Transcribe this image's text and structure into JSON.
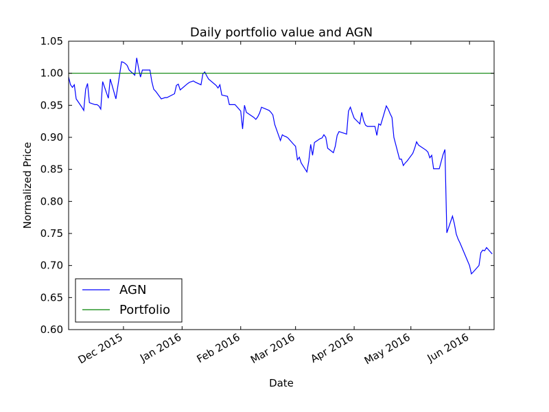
{
  "chart_data": {
    "type": "line",
    "title": "Daily portfolio value and AGN",
    "xlabel": "Date",
    "ylabel": "Normalized Price",
    "xlim": [
      "2015-11-02",
      "2016-06-14"
    ],
    "ylim": [
      0.6,
      1.05
    ],
    "grid": false,
    "legend_position": "lower-left",
    "x_ticks": [
      {
        "date": "2015-12-01",
        "label": "Dec 2015"
      },
      {
        "date": "2016-01-01",
        "label": "Jan 2016"
      },
      {
        "date": "2016-02-01",
        "label": "Feb 2016"
      },
      {
        "date": "2016-03-01",
        "label": "Mar 2016"
      },
      {
        "date": "2016-04-01",
        "label": "Apr 2016"
      },
      {
        "date": "2016-05-01",
        "label": "May 2016"
      },
      {
        "date": "2016-06-01",
        "label": "Jun 2016"
      }
    ],
    "y_ticks": [
      0.6,
      0.65,
      0.7,
      0.75,
      0.8,
      0.85,
      0.9,
      0.95,
      1.0,
      1.05
    ],
    "series": [
      {
        "name": "AGN",
        "color": "#0000ff",
        "points": [
          [
            "2015-11-02",
            0.994
          ],
          [
            "2015-11-03",
            0.982
          ],
          [
            "2015-11-04",
            0.978
          ],
          [
            "2015-11-05",
            0.982
          ],
          [
            "2015-11-06",
            0.96
          ],
          [
            "2015-11-09",
            0.947
          ],
          [
            "2015-11-10",
            0.942
          ],
          [
            "2015-11-11",
            0.975
          ],
          [
            "2015-11-12",
            0.984
          ],
          [
            "2015-11-13",
            0.954
          ],
          [
            "2015-11-16",
            0.951
          ],
          [
            "2015-11-17",
            0.951
          ],
          [
            "2015-11-18",
            0.949
          ],
          [
            "2015-11-19",
            0.944
          ],
          [
            "2015-11-20",
            0.987
          ],
          [
            "2015-11-23",
            0.961
          ],
          [
            "2015-11-24",
            0.991
          ],
          [
            "2015-11-25",
            0.981
          ],
          [
            "2015-11-27",
            0.96
          ],
          [
            "2015-11-30",
            1.018
          ],
          [
            "2015-12-01",
            1.017
          ],
          [
            "2015-12-02",
            1.015
          ],
          [
            "2015-12-03",
            1.012
          ],
          [
            "2015-12-04",
            1.005
          ],
          [
            "2015-12-07",
            0.997
          ],
          [
            "2015-12-08",
            1.024
          ],
          [
            "2015-12-09",
            1.008
          ],
          [
            "2015-12-10",
            0.994
          ],
          [
            "2015-12-11",
            1.005
          ],
          [
            "2015-12-14",
            1.005
          ],
          [
            "2015-12-15",
            1.005
          ],
          [
            "2015-12-16",
            0.987
          ],
          [
            "2015-12-17",
            0.975
          ],
          [
            "2015-12-18",
            0.972
          ],
          [
            "2015-12-21",
            0.96
          ],
          [
            "2015-12-22",
            0.961
          ],
          [
            "2015-12-23",
            0.962
          ],
          [
            "2015-12-24",
            0.962
          ],
          [
            "2015-12-28",
            0.968
          ],
          [
            "2015-12-29",
            0.981
          ],
          [
            "2015-12-30",
            0.983
          ],
          [
            "2015-12-31",
            0.974
          ],
          [
            "2016-01-04",
            0.984
          ],
          [
            "2016-01-05",
            0.986
          ],
          [
            "2016-01-06",
            0.987
          ],
          [
            "2016-01-07",
            0.988
          ],
          [
            "2016-01-08",
            0.986
          ],
          [
            "2016-01-11",
            0.982
          ],
          [
            "2016-01-12",
            0.999
          ],
          [
            "2016-01-13",
            1.002
          ],
          [
            "2016-01-14",
            0.996
          ],
          [
            "2016-01-15",
            0.991
          ],
          [
            "2016-01-19",
            0.981
          ],
          [
            "2016-01-20",
            0.977
          ],
          [
            "2016-01-21",
            0.982
          ],
          [
            "2016-01-22",
            0.966
          ],
          [
            "2016-01-25",
            0.964
          ],
          [
            "2016-01-26",
            0.951
          ],
          [
            "2016-01-27",
            0.951
          ],
          [
            "2016-01-28",
            0.951
          ],
          [
            "2016-01-29",
            0.951
          ],
          [
            "2016-02-01",
            0.941
          ],
          [
            "2016-02-02",
            0.913
          ],
          [
            "2016-02-03",
            0.95
          ],
          [
            "2016-02-04",
            0.939
          ],
          [
            "2016-02-05",
            0.937
          ],
          [
            "2016-02-08",
            0.931
          ],
          [
            "2016-02-09",
            0.928
          ],
          [
            "2016-02-10",
            0.932
          ],
          [
            "2016-02-11",
            0.938
          ],
          [
            "2016-02-12",
            0.947
          ],
          [
            "2016-02-16",
            0.942
          ],
          [
            "2016-02-17",
            0.939
          ],
          [
            "2016-02-18",
            0.935
          ],
          [
            "2016-02-19",
            0.92
          ],
          [
            "2016-02-22",
            0.895
          ],
          [
            "2016-02-23",
            0.904
          ],
          [
            "2016-02-24",
            0.902
          ],
          [
            "2016-02-25",
            0.901
          ],
          [
            "2016-02-26",
            0.899
          ],
          [
            "2016-02-29",
            0.889
          ],
          [
            "2016-03-01",
            0.886
          ],
          [
            "2016-03-02",
            0.865
          ],
          [
            "2016-03-03",
            0.869
          ],
          [
            "2016-03-04",
            0.86
          ],
          [
            "2016-03-07",
            0.846
          ],
          [
            "2016-03-08",
            0.863
          ],
          [
            "2016-03-09",
            0.889
          ],
          [
            "2016-03-10",
            0.872
          ],
          [
            "2016-03-11",
            0.892
          ],
          [
            "2016-03-14",
            0.898
          ],
          [
            "2016-03-15",
            0.899
          ],
          [
            "2016-03-16",
            0.904
          ],
          [
            "2016-03-17",
            0.9
          ],
          [
            "2016-03-18",
            0.883
          ],
          [
            "2016-03-21",
            0.876
          ],
          [
            "2016-03-22",
            0.886
          ],
          [
            "2016-03-23",
            0.903
          ],
          [
            "2016-03-24",
            0.909
          ],
          [
            "2016-03-28",
            0.905
          ],
          [
            "2016-03-29",
            0.941
          ],
          [
            "2016-03-30",
            0.947
          ],
          [
            "2016-03-31",
            0.938
          ],
          [
            "2016-04-01",
            0.93
          ],
          [
            "2016-04-04",
            0.921
          ],
          [
            "2016-04-05",
            0.939
          ],
          [
            "2016-04-06",
            0.926
          ],
          [
            "2016-04-07",
            0.919
          ],
          [
            "2016-04-08",
            0.917
          ],
          [
            "2016-04-11",
            0.917
          ],
          [
            "2016-04-12",
            0.917
          ],
          [
            "2016-04-13",
            0.903
          ],
          [
            "2016-04-14",
            0.921
          ],
          [
            "2016-04-15",
            0.919
          ],
          [
            "2016-04-18",
            0.949
          ],
          [
            "2016-04-19",
            0.944
          ],
          [
            "2016-04-20",
            0.937
          ],
          [
            "2016-04-21",
            0.931
          ],
          [
            "2016-04-22",
            0.9
          ],
          [
            "2016-04-25",
            0.866
          ],
          [
            "2016-04-26",
            0.866
          ],
          [
            "2016-04-27",
            0.856
          ],
          [
            "2016-04-28",
            0.86
          ],
          [
            "2016-04-29",
            0.863
          ],
          [
            "2016-05-02",
            0.875
          ],
          [
            "2016-05-03",
            0.883
          ],
          [
            "2016-05-04",
            0.893
          ],
          [
            "2016-05-05",
            0.888
          ],
          [
            "2016-05-06",
            0.886
          ],
          [
            "2016-05-09",
            0.88
          ],
          [
            "2016-05-10",
            0.877
          ],
          [
            "2016-05-11",
            0.868
          ],
          [
            "2016-05-12",
            0.872
          ],
          [
            "2016-05-13",
            0.851
          ],
          [
            "2016-05-16",
            0.851
          ],
          [
            "2016-05-17",
            0.862
          ],
          [
            "2016-05-18",
            0.873
          ],
          [
            "2016-05-19",
            0.881
          ],
          [
            "2016-05-20",
            0.751
          ],
          [
            "2016-05-23",
            0.777
          ],
          [
            "2016-05-24",
            0.765
          ],
          [
            "2016-05-25",
            0.749
          ],
          [
            "2016-05-26",
            0.741
          ],
          [
            "2016-05-27",
            0.735
          ],
          [
            "2016-05-31",
            0.707
          ],
          [
            "2016-06-01",
            0.7
          ],
          [
            "2016-06-02",
            0.687
          ],
          [
            "2016-06-03",
            0.69
          ],
          [
            "2016-06-06",
            0.7
          ],
          [
            "2016-06-07",
            0.72
          ],
          [
            "2016-06-08",
            0.724
          ],
          [
            "2016-06-09",
            0.723
          ],
          [
            "2016-06-10",
            0.728
          ],
          [
            "2016-06-13",
            0.718
          ]
        ]
      },
      {
        "name": "Portfolio",
        "color": "#008000",
        "points": [
          [
            "2015-11-02",
            1.0
          ],
          [
            "2016-06-14",
            1.0
          ]
        ]
      }
    ]
  }
}
